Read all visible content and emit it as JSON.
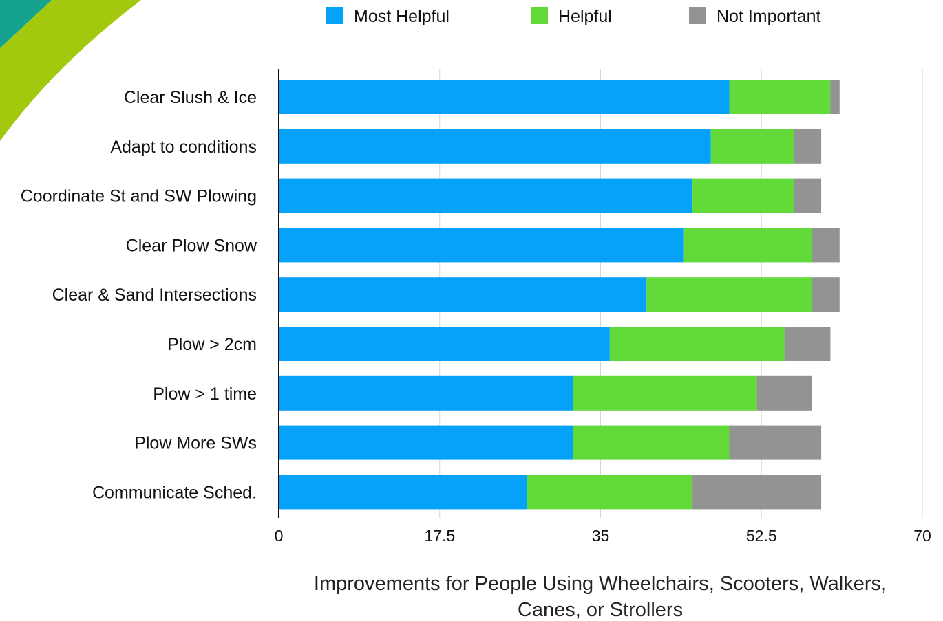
{
  "chart_data": {
    "type": "bar",
    "orientation": "horizontal",
    "stacked": true,
    "categories": [
      "Clear Slush & Ice",
      "Adapt to conditions",
      "Coordinate St and SW Plowing",
      "Clear Plow Snow",
      "Clear & Sand Intersections",
      "Plow > 2cm",
      "Plow > 1 time",
      "Plow More SWs",
      "Communicate Sched."
    ],
    "series": [
      {
        "name": "Most Helpful",
        "color": "#06a2fa",
        "values": [
          49,
          47,
          45,
          44,
          40,
          36,
          32,
          32,
          27
        ]
      },
      {
        "name": "Helpful",
        "color": "#61da3a",
        "values": [
          11,
          9,
          11,
          14,
          18,
          19,
          20,
          17,
          18
        ]
      },
      {
        "name": "Not Important",
        "color": "#939393",
        "values": [
          1,
          3,
          3,
          3,
          3,
          5,
          6,
          10,
          14
        ]
      }
    ],
    "xlim": [
      0,
      70
    ],
    "xticks": [
      "0",
      "17.5",
      "35",
      "52.5",
      "70"
    ],
    "xlabel_lines": [
      "Improvements for People Using Wheelchairs, Scooters, Walkers,",
      "Canes, or Strollers"
    ],
    "grid": "vertical",
    "legend_position": "top"
  },
  "decor": {
    "swoosh_teal": "#15a38f",
    "swoosh_green": "#a3c90f"
  }
}
